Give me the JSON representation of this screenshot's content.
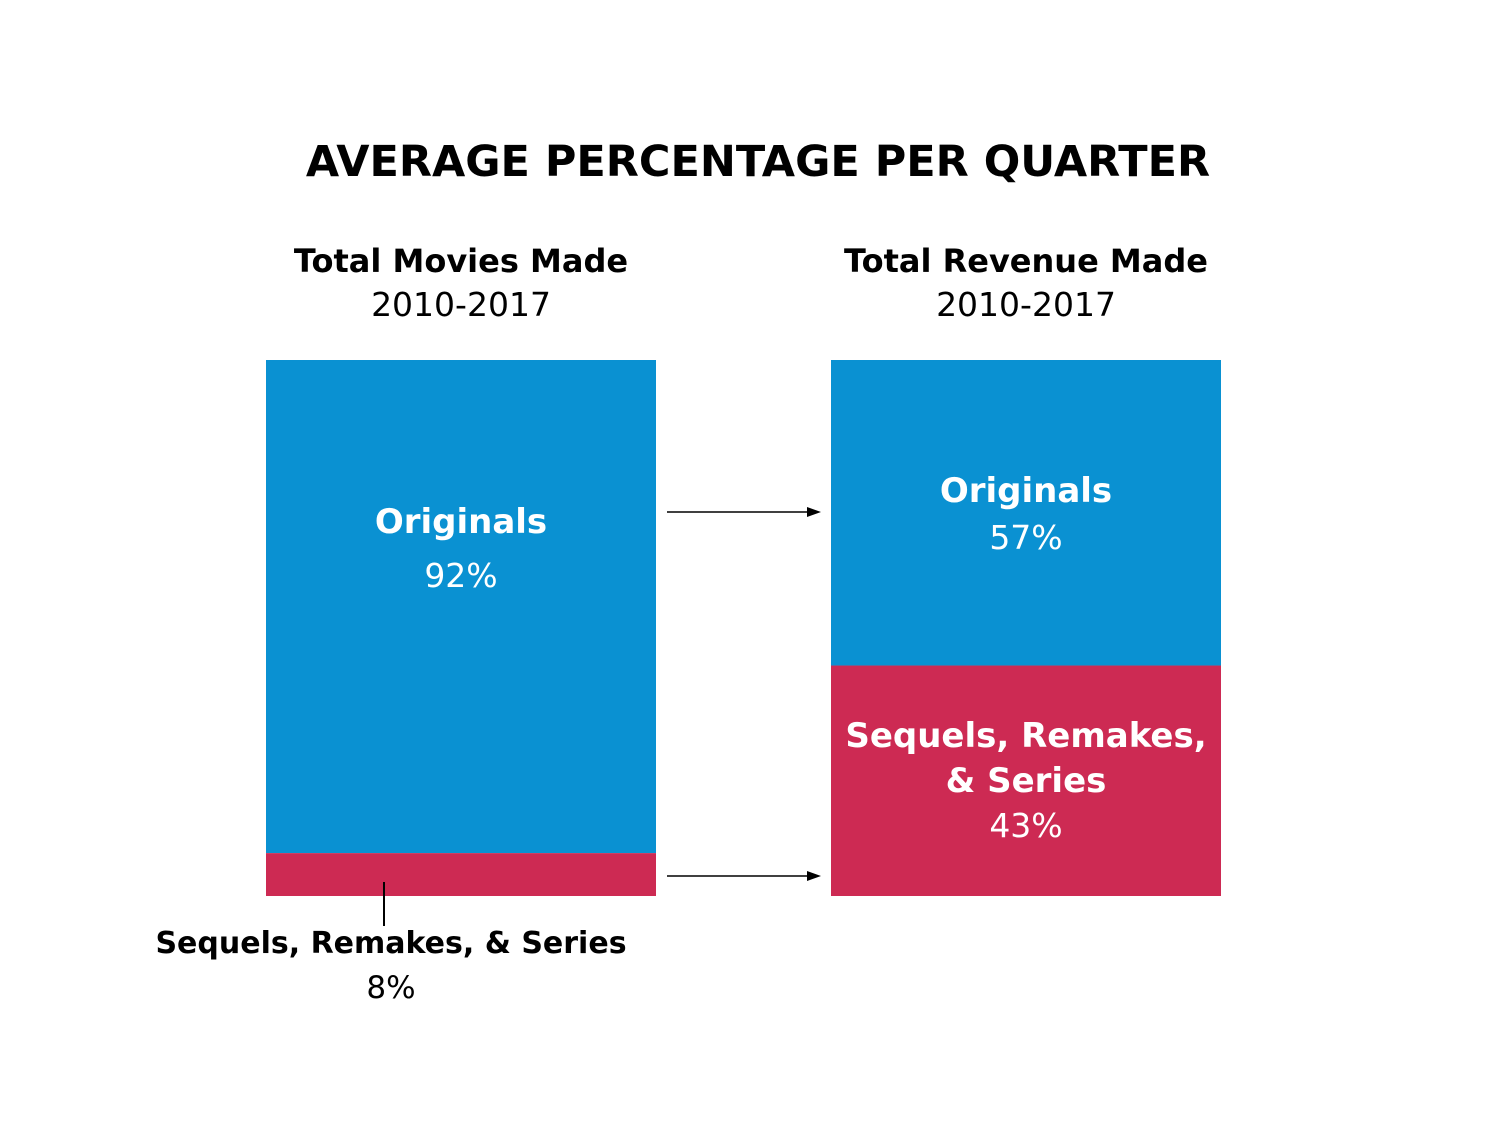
{
  "chart_data": {
    "type": "bar",
    "title": "AVERAGE PERCENTAGE PER QUARTER",
    "colors": {
      "originals": "#0a91d2",
      "sequels": "#cd2a53"
    },
    "bars": [
      {
        "heading": "Total Movies Made",
        "period": "2010-2017",
        "segments": [
          {
            "label": "Originals",
            "value": 92,
            "value_label": "92%"
          },
          {
            "label": "Sequels, Remakes, & Series",
            "value": 8,
            "value_label": "8%"
          }
        ]
      },
      {
        "heading": "Total Revenue Made",
        "period": "2010-2017",
        "segments": [
          {
            "label": "Originals",
            "value": 57,
            "value_label": "57%"
          },
          {
            "label_lines": [
              "Sequels, Remakes,",
              "& Series"
            ],
            "value": 43,
            "value_label": "43%"
          }
        ]
      }
    ]
  }
}
